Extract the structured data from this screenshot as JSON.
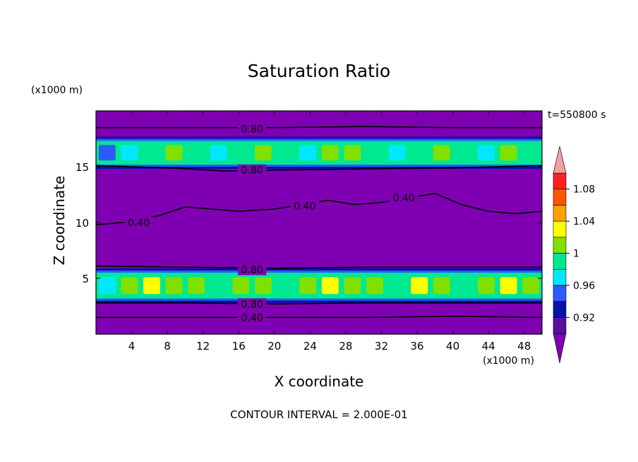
{
  "chart_data": {
    "type": "heatmap",
    "title": "Saturation Ratio",
    "xlabel": "X coordinate",
    "ylabel": "Z coordinate",
    "x_unit": "(x1000 m)",
    "y_unit": "(x1000 m)",
    "xlim": [
      0,
      50
    ],
    "ylim": [
      0,
      20
    ],
    "x_ticks": [
      4,
      8,
      12,
      16,
      20,
      24,
      28,
      32,
      36,
      40,
      44,
      48
    ],
    "y_ticks": [
      5,
      10,
      15
    ],
    "time_label": "t=550800 s",
    "footnote": "CONTOUR INTERVAL = 2.000E-01",
    "colorbar": {
      "levels": [
        0.9,
        0.92,
        0.94,
        0.96,
        0.98,
        1.0,
        1.02,
        1.04,
        1.06,
        1.08,
        1.1
      ],
      "tick_labels": [
        "0.92",
        "0.96",
        "1",
        "1.04",
        "1.08"
      ],
      "tick_values": [
        0.92,
        0.96,
        1.0,
        1.04,
        1.08
      ],
      "colors": [
        "#5a0f9e",
        "#0a10a8",
        "#2a5cff",
        "#00e8ff",
        "#00e890",
        "#80e000",
        "#ffff00",
        "#ffa000",
        "#ff5500",
        "#ff2020"
      ],
      "under_color": "#7f00b2",
      "over_color": "#f2a0a0"
    },
    "contour_labels": [
      {
        "text": "0.80",
        "x": 17.5,
        "z": 18.4
      },
      {
        "text": "0.80",
        "x": 17.5,
        "z": 14.7
      },
      {
        "text": "0.40",
        "x": 4.8,
        "z": 10.0
      },
      {
        "text": "0.40",
        "x": 23.4,
        "z": 11.5
      },
      {
        "text": "0.40",
        "x": 34.5,
        "z": 12.2
      },
      {
        "text": "0.80",
        "x": 17.5,
        "z": 5.8
      },
      {
        "text": "0.80",
        "x": 17.5,
        "z": 2.7
      },
      {
        "text": "0.40",
        "x": 17.5,
        "z": 1.5
      }
    ],
    "contour_lines": [
      {
        "value": 0.8,
        "points": [
          [
            0,
            18.5
          ],
          [
            10,
            18.5
          ],
          [
            20,
            18.5
          ],
          [
            30,
            18.6
          ],
          [
            40,
            18.5
          ],
          [
            50,
            18.5
          ]
        ]
      },
      {
        "value": 0.8,
        "points": [
          [
            0,
            15.1
          ],
          [
            8,
            14.9
          ],
          [
            15,
            14.6
          ],
          [
            20,
            14.7
          ],
          [
            30,
            14.8
          ],
          [
            40,
            14.9
          ],
          [
            50,
            15.1
          ]
        ]
      },
      {
        "value": 0.8,
        "points": [
          [
            0,
            6.1
          ],
          [
            10,
            6.0
          ],
          [
            20,
            5.9
          ],
          [
            30,
            6.0
          ],
          [
            40,
            6.0
          ],
          [
            50,
            6.0
          ]
        ]
      },
      {
        "value": 0.8,
        "points": [
          [
            0,
            2.8
          ],
          [
            10,
            2.8
          ],
          [
            20,
            2.7
          ],
          [
            30,
            2.8
          ],
          [
            40,
            2.8
          ],
          [
            50,
            2.8
          ]
        ]
      },
      {
        "value": 0.4,
        "points": [
          [
            0,
            1.5
          ],
          [
            10,
            1.5
          ],
          [
            20,
            1.5
          ],
          [
            30,
            1.5
          ],
          [
            40,
            1.6
          ],
          [
            50,
            1.5
          ]
        ]
      },
      {
        "value": 0.4,
        "points": [
          [
            0,
            9.8
          ],
          [
            3,
            10.0
          ],
          [
            7,
            10.6
          ],
          [
            10,
            11.4
          ],
          [
            13,
            11.2
          ],
          [
            16,
            11.0
          ],
          [
            20,
            11.2
          ],
          [
            23,
            11.6
          ],
          [
            26,
            12.0
          ],
          [
            29,
            11.6
          ],
          [
            32,
            11.8
          ],
          [
            35,
            12.2
          ],
          [
            38,
            12.6
          ],
          [
            41,
            11.6
          ],
          [
            44,
            11.0
          ],
          [
            47,
            10.8
          ],
          [
            50,
            11.0
          ]
        ]
      }
    ],
    "bands": [
      {
        "name": "upper",
        "z_range": [
          15.0,
          17.5
        ],
        "values": [
          0.94,
          0.97,
          0.99,
          1.005,
          0.99,
          0.97,
          0.99,
          1.01,
          0.98,
          0.97,
          1.0,
          1.01,
          0.99,
          0.97,
          0.98,
          1.01,
          0.99,
          0.97,
          1.0,
          0.98
        ]
      },
      {
        "name": "lower",
        "z_range": [
          3.0,
          5.7
        ],
        "values": [
          0.97,
          1.01,
          1.02,
          1.01,
          1.015,
          0.99,
          1.01,
          1.005,
          0.98,
          1.01,
          1.02,
          1.0,
          1.01,
          0.99,
          1.02,
          1.01,
          0.99,
          1.01,
          1.02,
          1.0
        ]
      }
    ]
  }
}
